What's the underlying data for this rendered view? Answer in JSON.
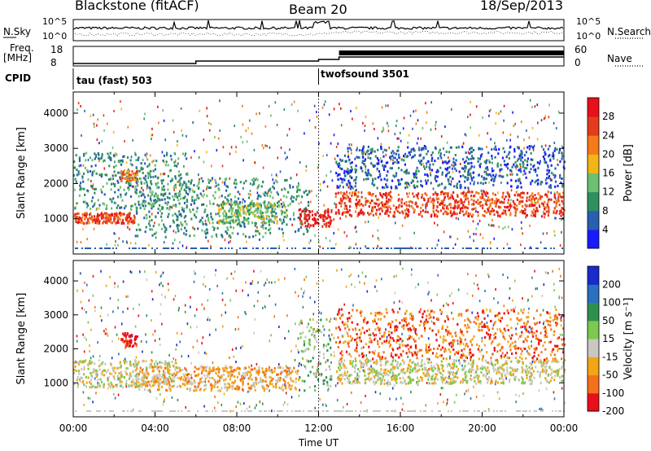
{
  "header": {
    "station": "Blackstone (fitACF)",
    "beam": "Beam 20",
    "date": "18/Sep/2013"
  },
  "noise_panel": {
    "left_label": "N.Sky",
    "right_label": "N.Search",
    "ticks": [
      "10^5",
      "10^0"
    ]
  },
  "freq_panel": {
    "label_line1": "Freq.",
    "label_line2": "[MHz]",
    "left_ticks": [
      "18",
      "8"
    ],
    "right_ticks": [
      "60",
      "0"
    ],
    "right_label": "Nave"
  },
  "cpid": {
    "label": "CPID",
    "programs": [
      {
        "name": "tau (fast) 503",
        "start_hour": 0
      },
      {
        "name": "twofsound 3501",
        "start_hour": 12
      }
    ]
  },
  "chart_data": [
    {
      "type": "heatmap",
      "name": "power",
      "ylabel": "Slant Range [km]",
      "y_ticks": [
        1000,
        2000,
        3000,
        4000
      ],
      "ylim": [
        0,
        4600
      ],
      "xlim": [
        0,
        24
      ],
      "colorbar": {
        "label": "Power [dB]",
        "ticks": [
          "4",
          "8",
          "12",
          "16",
          "20",
          "24",
          "28"
        ],
        "colors": [
          "#1a1aff",
          "#2a5fb0",
          "#2f8f5f",
          "#6cc070",
          "#f2b515",
          "#f57a18",
          "#e23c1c",
          "#e8101a"
        ]
      },
      "bands": [
        {
          "t0": 0.0,
          "t1": 3.0,
          "r0": 900,
          "r1": 1200,
          "level": 6
        },
        {
          "t0": 0.0,
          "t1": 5.5,
          "r0": 1300,
          "r1": 2900,
          "level": 2
        },
        {
          "t0": 2.3,
          "t1": 3.1,
          "r0": 2100,
          "r1": 2400,
          "level": 5
        },
        {
          "t0": 3.0,
          "t1": 11.5,
          "r0": 500,
          "r1": 2200,
          "level": 2
        },
        {
          "t0": 7.0,
          "t1": 10.5,
          "r0": 900,
          "r1": 1500,
          "level": 3
        },
        {
          "t0": 11.0,
          "t1": 12.6,
          "r0": 800,
          "r1": 1300,
          "level": 7
        },
        {
          "t0": 12.8,
          "t1": 24.0,
          "r0": 1100,
          "r1": 1800,
          "level": 6
        },
        {
          "t0": 12.8,
          "t1": 24.0,
          "r0": 1900,
          "r1": 3100,
          "level": 1
        }
      ]
    },
    {
      "type": "heatmap",
      "name": "velocity",
      "ylabel": "Slant Range [km]",
      "y_ticks": [
        1000,
        2000,
        3000,
        4000
      ],
      "ylim": [
        0,
        4600
      ],
      "xlim": [
        0,
        24
      ],
      "colorbar": {
        "label": "Velocity [m s⁻¹]",
        "ticks": [
          "200",
          "100",
          "50",
          "15",
          "-15",
          "-50",
          "-100",
          "-200"
        ],
        "colors": [
          "#1a2acc",
          "#2a6fc0",
          "#2f8f4f",
          "#7cc850",
          "#c8c8c0",
          "#f2a515",
          "#f5701a",
          "#e8101a"
        ]
      },
      "bands": [
        {
          "t0": 0.0,
          "t1": 5.0,
          "r0": 900,
          "r1": 1700,
          "level": 4
        },
        {
          "t0": 2.3,
          "t1": 3.1,
          "r0": 2100,
          "r1": 2500,
          "level": 7
        },
        {
          "t0": 3.0,
          "t1": 11.0,
          "r0": 800,
          "r1": 1500,
          "level": 5
        },
        {
          "t0": 11.0,
          "t1": 12.6,
          "r0": 800,
          "r1": 2900,
          "level": 3
        },
        {
          "t0": 12.8,
          "t1": 24.0,
          "r0": 1000,
          "r1": 1700,
          "level": 4
        },
        {
          "t0": 12.8,
          "t1": 24.0,
          "r0": 1700,
          "r1": 3200,
          "level": 6
        }
      ]
    }
  ],
  "x_axis": {
    "label": "Time UT",
    "ticks": [
      "00:00",
      "04:00",
      "08:00",
      "12:00",
      "16:00",
      "20:00",
      "00:00"
    ]
  }
}
